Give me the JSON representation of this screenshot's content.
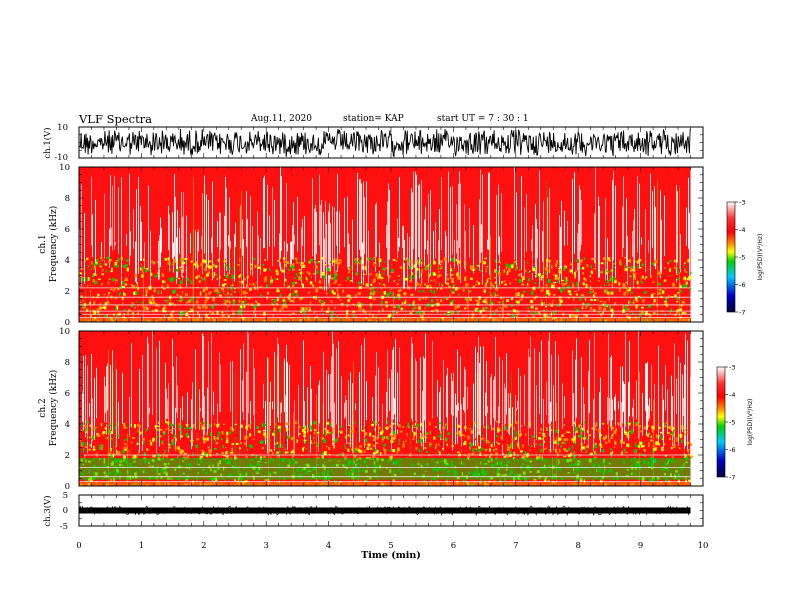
{
  "header": {
    "title": "VLF Spectra",
    "date": "Aug.11, 2020",
    "station": "station= KAP",
    "start_ut": "start  UT =   7 : 30 : 1"
  },
  "chart_data": [
    {
      "type": "line",
      "id": "ch1-waveform",
      "ylabel": "ch.1(V)",
      "ylim": [
        -10,
        10
      ],
      "yticks": [
        "10",
        "-10"
      ],
      "xlim": [
        0,
        10
      ],
      "note": "dense oscillating waveform, amplitude approx -10 to 10 V over 0-9.8 min"
    },
    {
      "type": "heatmap",
      "id": "ch1-spectrogram",
      "ylabel": "ch.1\nFrequency (kHz)",
      "ylim": [
        0,
        10
      ],
      "yticks": [
        "0",
        "2",
        "4",
        "6",
        "8",
        "10"
      ],
      "xlim": [
        0,
        10
      ],
      "data_end_x": 9.8,
      "colorbar": {
        "label": "log(PSD)(V²/Hz)",
        "range": [
          -7,
          -3
        ],
        "ticks": [
          "-3",
          "-4",
          "-5",
          "-6",
          "-7"
        ]
      },
      "dominant_level": -4,
      "bands_khz": [
        2.2,
        1.6,
        1.1,
        0.7,
        0.5,
        0.3
      ]
    },
    {
      "type": "heatmap",
      "id": "ch2-spectrogram",
      "ylabel": "ch.2\nFrequency (kHz)",
      "ylim": [
        0,
        10
      ],
      "yticks": [
        "0",
        "2",
        "4",
        "6",
        "8",
        "10"
      ],
      "xlim": [
        0,
        10
      ],
      "data_end_x": 9.8,
      "colorbar": {
        "label": "log(PSD)(V²/Hz)",
        "range": [
          -7,
          -3
        ],
        "ticks": [
          "-3",
          "-4",
          "-5",
          "-6",
          "-7"
        ]
      },
      "dominant_level": -4,
      "low_freq_band_khz": [
        0.4,
        1.8
      ],
      "low_freq_band_level": -5
    },
    {
      "type": "line",
      "id": "ch3-waveform",
      "ylabel": "ch.3(V)",
      "ylim": [
        -5,
        5
      ],
      "yticks": [
        "5",
        "0",
        "-5"
      ],
      "xlim": [
        0,
        10
      ],
      "note": "thin band centered near 0 V"
    }
  ],
  "x_axis": {
    "label": "Time (min)",
    "ticks": [
      "0",
      "1",
      "2",
      "3",
      "4",
      "5",
      "6",
      "7",
      "8",
      "9",
      "10"
    ]
  },
  "colors": {
    "waveform": "#000000",
    "background": "#ffffff",
    "colormap": [
      "#00003c",
      "#0000c8",
      "#00c8ff",
      "#00d200",
      "#ffff00",
      "#ff8c00",
      "#ff0000",
      "#ffffff"
    ]
  }
}
